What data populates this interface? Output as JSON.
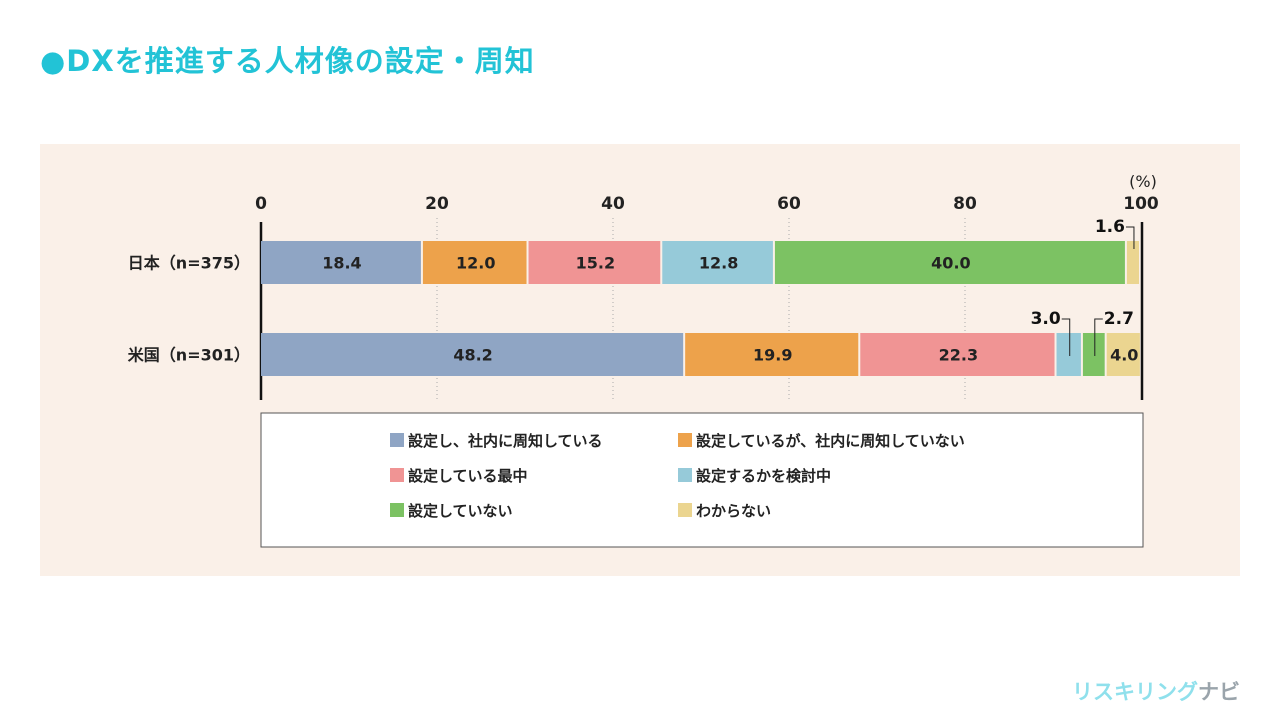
{
  "title": "●DXを推進する人材像の設定・周知",
  "logo": {
    "main": "リスキリング",
    "sub": "ナビ"
  },
  "chart_data": {
    "type": "bar",
    "orientation": "horizontal",
    "stacked": true,
    "unit_label": "(%)",
    "xlim": [
      0,
      100
    ],
    "xticks": [
      0,
      20,
      40,
      60,
      80,
      100
    ],
    "categories": [
      "日本（n=375）",
      "米国（n=301）"
    ],
    "series": [
      {
        "name": "設定し、社内に周知している",
        "color": "#8fa5c4",
        "values": [
          18.4,
          48.2
        ]
      },
      {
        "name": "設定しているが、社内に周知していない",
        "color": "#eda24b",
        "values": [
          12.0,
          19.9
        ]
      },
      {
        "name": "設定している最中",
        "color": "#f09494",
        "values": [
          15.2,
          22.3
        ]
      },
      {
        "name": "設定するかを検討中",
        "color": "#96cad9",
        "values": [
          12.8,
          3.0
        ]
      },
      {
        "name": "設定していない",
        "color": "#7cc263",
        "values": [
          40.0,
          2.7
        ]
      },
      {
        "name": "わからない",
        "color": "#ebd590",
        "values": [
          1.6,
          4.0
        ]
      }
    ]
  }
}
